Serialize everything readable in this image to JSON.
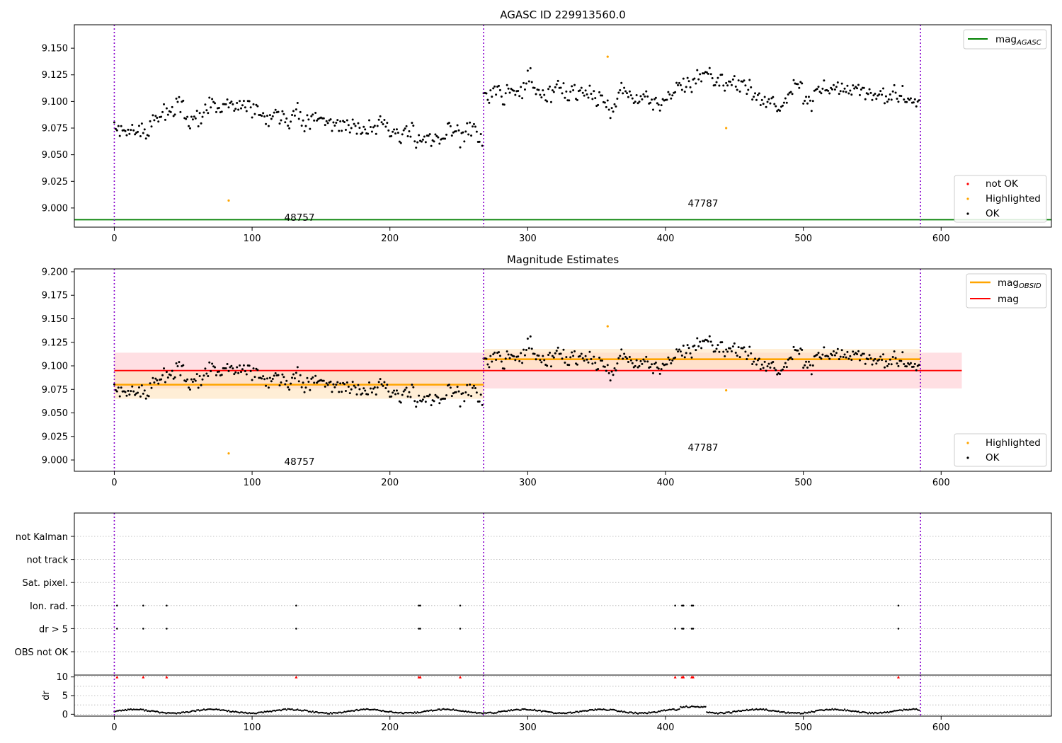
{
  "colors": {
    "ok": "#000000",
    "highlighted": "#ffa500",
    "not_ok": "#ff0000",
    "mag_agasc": "#008000",
    "mag_obsid": "#ffa500",
    "mag": "#ff0000",
    "boundary": "#8800cc",
    "mag_band": "#ffc0c8",
    "obsid_band": "#ffe2bb"
  },
  "chart_data": [
    {
      "type": "scatter",
      "title": "AGASC ID 229913560.0",
      "xlim": [
        -29,
        680
      ],
      "ylim": [
        8.982,
        9.172
      ],
      "xticks": [
        0,
        100,
        200,
        300,
        400,
        500,
        600
      ],
      "yticks": [
        9.0,
        9.025,
        9.05,
        9.075,
        9.1,
        9.125,
        9.15
      ],
      "ytick_labels": [
        "9.000",
        "9.025",
        "9.050",
        "9.075",
        "9.100",
        "9.125",
        "9.150"
      ],
      "segments": [
        {
          "start": 0,
          "end": 268,
          "center": 9.08,
          "amp": 0.013,
          "trend": -0.022,
          "seed": 11
        },
        {
          "start": 268,
          "end": 585,
          "center": 9.107,
          "amp": 0.012,
          "trend": -0.004,
          "seed": 29
        }
      ],
      "boundaries": [
        0,
        268,
        585
      ],
      "highlighted_points": [
        [
          83,
          9.007
        ],
        [
          358,
          9.142
        ],
        [
          444,
          9.075
        ]
      ],
      "mag_agasc_line": {
        "y": 8.989,
        "x_range": [
          -29,
          680
        ]
      },
      "annotations": [
        {
          "text": "48757",
          "x": 134,
          "y": 8.99
        },
        {
          "text": "47787",
          "x": 427,
          "y": 8.997
        }
      ],
      "legend_upper": [
        {
          "label": "mag",
          "sub": "AGASC",
          "style": "line",
          "color": "#008000"
        }
      ],
      "legend_lower": [
        {
          "label": "not OK",
          "color": "#ff0000"
        },
        {
          "label": "Highlighted",
          "color": "#ffa500"
        },
        {
          "label": "OK",
          "color": "#000000"
        }
      ]
    },
    {
      "type": "scatter",
      "title": "Magnitude Estimates",
      "xlim": [
        -29,
        680
      ],
      "ylim": [
        8.988,
        9.203
      ],
      "xticks": [
        0,
        100,
        200,
        300,
        400,
        500,
        600
      ],
      "yticks": [
        9.0,
        9.025,
        9.05,
        9.075,
        9.1,
        9.125,
        9.15,
        9.175,
        9.2
      ],
      "ytick_labels": [
        "9.000",
        "9.025",
        "9.050",
        "9.075",
        "9.100",
        "9.125",
        "9.150",
        "9.175",
        "9.200"
      ],
      "mag": {
        "value": 9.095,
        "band": [
          9.076,
          9.114
        ],
        "x_range": [
          0,
          615
        ]
      },
      "mag_obsid": [
        {
          "x_range": [
            0,
            268
          ],
          "value": 9.08,
          "band": [
            9.065,
            9.094
          ]
        },
        {
          "x_range": [
            268,
            585
          ],
          "value": 9.107,
          "band": [
            9.097,
            9.118
          ]
        }
      ],
      "highlighted_points": [
        [
          83,
          9.007
        ],
        [
          358,
          9.142
        ],
        [
          444,
          9.074
        ]
      ],
      "annotations": [
        {
          "text": "48757",
          "x": 134,
          "y": 8.994
        },
        {
          "text": "47787",
          "x": 427,
          "y": 9.01
        }
      ],
      "legend_upper": [
        {
          "label": "mag",
          "sub": "OBSID",
          "style": "line",
          "color": "#ffa500"
        },
        {
          "label": "mag",
          "sub": "",
          "style": "line",
          "color": "#ff0000"
        }
      ],
      "legend_lower": [
        {
          "label": "Highlighted",
          "color": "#ffa500"
        },
        {
          "label": "OK",
          "color": "#000000"
        }
      ]
    },
    {
      "type": "scatter",
      "title": "",
      "xlim": [
        -29,
        680
      ],
      "flag_categories": [
        "not Kalman",
        "not track",
        "Sat. pixel.",
        "Ion. rad.",
        "dr > 5",
        "OBS not OK"
      ],
      "flag_points": {
        "Ion. rad.": [
          2,
          21,
          38,
          132,
          221,
          222,
          251,
          407,
          412,
          413,
          419,
          420,
          569
        ],
        "dr > 5": [
          2,
          21,
          38,
          132,
          221,
          222,
          251,
          407,
          412,
          413,
          419,
          420,
          569
        ]
      }
    },
    {
      "type": "scatter",
      "ylabel": "dr",
      "xlim": [
        -29,
        680
      ],
      "ylim": [
        -0.5,
        10.5
      ],
      "xticks": [
        0,
        100,
        200,
        300,
        400,
        500,
        600
      ],
      "yticks": [
        0,
        5,
        10
      ],
      "ytick_labels": [
        "0",
        "5",
        "10"
      ],
      "clipped_points": [
        2,
        21,
        38,
        132,
        221,
        222,
        251,
        407,
        412,
        413,
        419,
        420,
        569
      ],
      "clip_value": 10
    }
  ]
}
